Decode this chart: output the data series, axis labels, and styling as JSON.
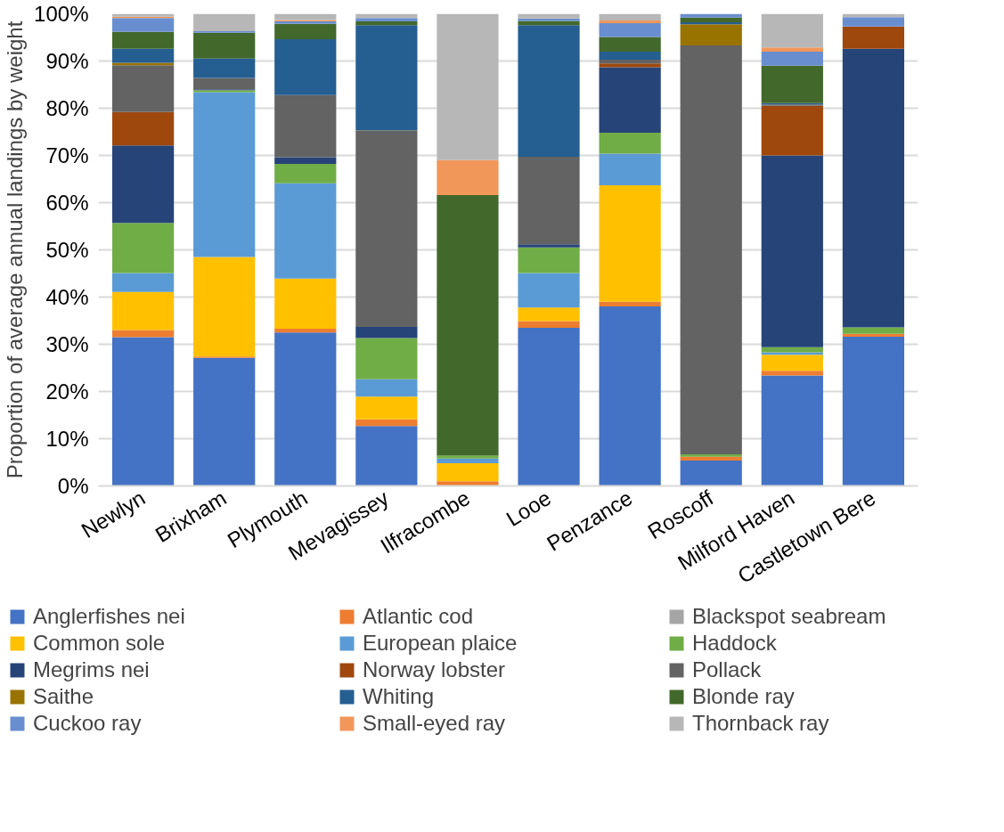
{
  "chart_data": {
    "type": "bar",
    "stacked": true,
    "ylabel": "Proportion of average annual landings by weight",
    "categories": [
      "Newlyn",
      "Brixham",
      "Plymouth",
      "Mevagissey",
      "Ilfracombe",
      "Looe",
      "Penzance",
      "Roscoff",
      "Milford Haven",
      "Castletown Bere"
    ],
    "ylim": [
      0,
      100
    ],
    "yticks": [
      {
        "value": 0,
        "label": "0%"
      },
      {
        "value": 10,
        "label": "10%"
      },
      {
        "value": 20,
        "label": "20%"
      },
      {
        "value": 30,
        "label": "30%"
      },
      {
        "value": 40,
        "label": "40%"
      },
      {
        "value": 50,
        "label": "50%"
      },
      {
        "value": 60,
        "label": "60%"
      },
      {
        "value": 70,
        "label": "70%"
      },
      {
        "value": 80,
        "label": "80%"
      },
      {
        "value": 90,
        "label": "90%"
      },
      {
        "value": 100,
        "label": "100%"
      }
    ],
    "grid": "y",
    "legend": "bottom",
    "series": [
      {
        "name": "Anglerfishes nei",
        "color": "#4472c4",
        "values": [
          31.5,
          27.1,
          32.5,
          12.7,
          0,
          33.5,
          38.0,
          5.4,
          23.4,
          31.6
        ]
      },
      {
        "name": "Atlantic cod",
        "color": "#ed7d31",
        "values": [
          1.5,
          0.3,
          0.8,
          1.4,
          1.0,
          1.4,
          1.0,
          0.8,
          1.0,
          0.6
        ]
      },
      {
        "name": "Blackspot seabream",
        "color": "#a5a5a5",
        "values": [
          0,
          0,
          0,
          0,
          0,
          0,
          0,
          0,
          0,
          0
        ]
      },
      {
        "name": "Common sole",
        "color": "#ffc000",
        "values": [
          8.1,
          21.1,
          10.6,
          4.8,
          3.8,
          2.9,
          24.7,
          0,
          3.4,
          0
        ]
      },
      {
        "name": "European plaice",
        "color": "#5b9bd5",
        "values": [
          4.0,
          34.9,
          20.2,
          3.7,
          1.0,
          7.3,
          6.7,
          0,
          0.5,
          0
        ]
      },
      {
        "name": "Haddock",
        "color": "#70ad47",
        "values": [
          10.6,
          0.4,
          4.1,
          8.7,
          0.6,
          5.4,
          4.4,
          0.5,
          1.1,
          1.4
        ]
      },
      {
        "name": "Megrims nei",
        "color": "#264478",
        "values": [
          16.4,
          0.2,
          1.4,
          2.4,
          0,
          0.7,
          13.9,
          0,
          40.6,
          59.0
        ]
      },
      {
        "name": "Norway lobster",
        "color": "#9e480e",
        "values": [
          7.1,
          0,
          0,
          0,
          0,
          0,
          0.8,
          0,
          10.5,
          4.7
        ]
      },
      {
        "name": "Pollack",
        "color": "#636363",
        "values": [
          9.9,
          2.4,
          13.2,
          41.5,
          0,
          18.5,
          0.8,
          86.6,
          0.3,
          0
        ]
      },
      {
        "name": "Saithe",
        "color": "#997300",
        "values": [
          0.5,
          0,
          0,
          0.1,
          0,
          0,
          0,
          4.5,
          0,
          0
        ]
      },
      {
        "name": "Whiting",
        "color": "#255e91",
        "values": [
          3.0,
          4.1,
          11.8,
          22.3,
          0,
          27.9,
          1.7,
          0.4,
          0.3,
          0
        ]
      },
      {
        "name": "Blonde ray",
        "color": "#43682b",
        "values": [
          3.6,
          5.5,
          3.3,
          0.8,
          55.2,
          0.9,
          3.1,
          1.0,
          7.9,
          0
        ]
      },
      {
        "name": "Cuckoo ray",
        "color": "#698ed0",
        "values": [
          2.9,
          0.3,
          0.5,
          0.7,
          0,
          0.5,
          2.9,
          0.8,
          3.0,
          2.0
        ]
      },
      {
        "name": "Small-eyed ray",
        "color": "#f1975a",
        "values": [
          0.3,
          0,
          0.3,
          0,
          7.4,
          0,
          0.6,
          0,
          0.9,
          0
        ]
      },
      {
        "name": "Thornback ray",
        "color": "#b7b7b7",
        "values": [
          0.6,
          3.7,
          1.3,
          0.9,
          31.0,
          1.0,
          1.4,
          0,
          7.1,
          0.7
        ]
      }
    ]
  }
}
